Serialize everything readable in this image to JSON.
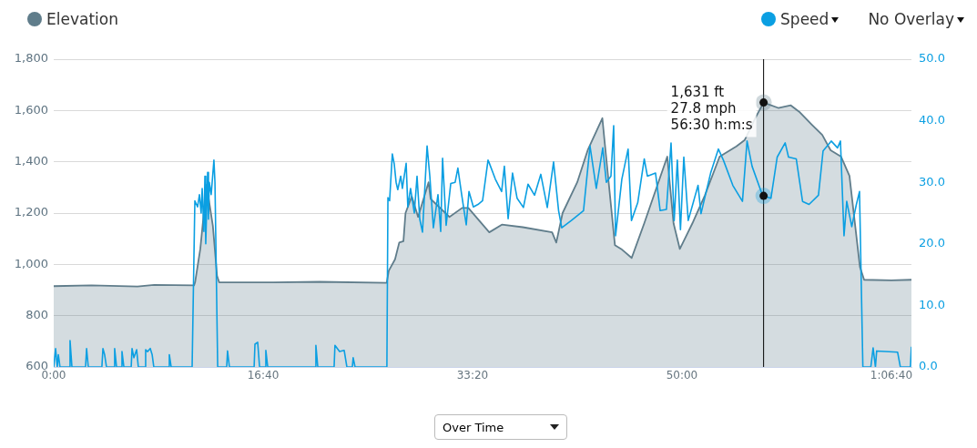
{
  "chart_data": {
    "type": "line",
    "xlim": [
      0,
      4096
    ],
    "xticks": [
      {
        "value": 0,
        "label": "0:00"
      },
      {
        "value": 1000,
        "label": "16:40"
      },
      {
        "value": 2000,
        "label": "33:20"
      },
      {
        "value": 3000,
        "label": "50:00"
      },
      {
        "value": 4000,
        "label": "1:06:40"
      }
    ],
    "ylim": [
      600,
      1800
    ],
    "yticks": [
      {
        "value": 600,
        "label": "600"
      },
      {
        "value": 800,
        "label": "800"
      },
      {
        "value": 1000,
        "label": "1,000"
      },
      {
        "value": 1200,
        "label": "1,200"
      },
      {
        "value": 1400,
        "label": "1,400"
      },
      {
        "value": 1600,
        "label": "1,600"
      },
      {
        "value": 1800,
        "label": "1,800"
      }
    ],
    "y2lim": [
      0,
      50
    ],
    "y2ticks": [
      {
        "value": 0,
        "label": "0.0"
      },
      {
        "value": 10,
        "label": "10.0"
      },
      {
        "value": 20,
        "label": "20.0"
      },
      {
        "value": 30,
        "label": "30.0"
      },
      {
        "value": 40,
        "label": "40.0"
      },
      {
        "value": 50,
        "label": "50.0"
      }
    ],
    "grid": "y",
    "legend": "top",
    "marker": "none",
    "line_style": "solid",
    "series": [
      {
        "name": "Elevation",
        "type": "area",
        "color": "#607d8b",
        "x": [
          0,
          180,
          400,
          480,
          670,
          675,
          700,
          730,
          760,
          780,
          790,
          1050,
          1270,
          1590,
          1600,
          1630,
          1650,
          1670,
          1680,
          1710,
          1740,
          1790,
          1800,
          1890,
          1950,
          1980,
          2080,
          2140,
          2240,
          2380,
          2400,
          2430,
          2500,
          2550,
          2620,
          2630,
          2680,
          2710,
          2760,
          2820,
          2930,
          2960,
          2990,
          3050,
          3110,
          3180,
          3260,
          3300,
          3350,
          3390,
          3460,
          3520,
          3560,
          3620,
          3670,
          3710,
          3760,
          3800,
          3850,
          3870,
          4000,
          4096
        ],
        "values": [
          915,
          918,
          914,
          920,
          918,
          930,
          1060,
          1310,
          1150,
          955,
          930,
          930,
          932,
          928,
          975,
          1020,
          1085,
          1090,
          1200,
          1265,
          1185,
          1320,
          1255,
          1185,
          1220,
          1220,
          1125,
          1155,
          1145,
          1125,
          1085,
          1200,
          1320,
          1445,
          1570,
          1485,
          1075,
          1060,
          1025,
          1160,
          1420,
          1160,
          1060,
          1160,
          1270,
          1420,
          1460,
          1485,
          1570,
          1631,
          1610,
          1620,
          1595,
          1545,
          1505,
          1445,
          1420,
          1345,
          990,
          940,
          938,
          940
        ]
      },
      {
        "name": "Speed",
        "type": "line",
        "axis": "y2",
        "color": "#0b9fe2",
        "x": [
          0,
          9,
          17,
          22,
          30,
          74,
          78,
          87,
          152,
          157,
          165,
          230,
          235,
          243,
          252,
          287,
          291,
          300,
          322,
          326,
          335,
          370,
          374,
          383,
          396,
          404,
          435,
          439,
          448,
          461,
          470,
          478,
          548,
          552,
          561,
          661,
          674,
          687,
          696,
          704,
          709,
          717,
          722,
          726,
          735,
          739,
          743,
          752,
          765,
          770,
          783,
          826,
          830,
          839,
          957,
          961,
          974,
          983,
          1009,
          1013,
          1022,
          1248,
          1252,
          1261,
          1339,
          1343,
          1365,
          1387,
          1400,
          1426,
          1430,
          1439,
          1591,
          1596,
          1604,
          1617,
          1626,
          1635,
          1643,
          1657,
          1665,
          1683,
          1691,
          1704,
          1722,
          1735,
          1748,
          1761,
          1783,
          1796,
          1813,
          1835,
          1848,
          1857,
          1874,
          1896,
          1917,
          1930,
          1948,
          1970,
          1983,
          2004,
          2026,
          2048,
          2074,
          2078,
          2109,
          2139,
          2152,
          2170,
          2191,
          2213,
          2243,
          2265,
          2296,
          2326,
          2357,
          2387,
          2411,
          2426,
          2472,
          2530,
          2561,
          2591,
          2622,
          2639,
          2661,
          2674,
          2683,
          2713,
          2743,
          2759,
          2789,
          2820,
          2835,
          2874,
          2896,
          2926,
          2948,
          2963,
          2978,
          2993,
          3009,
          3030,
          3077,
          3091,
          3137,
          3174,
          3198,
          3243,
          3289,
          3311,
          3335,
          3378,
          3390,
          3425,
          3455,
          3493,
          3509,
          3546,
          3576,
          3607,
          3652,
          3674,
          3713,
          3743,
          3757,
          3774,
          3787,
          3811,
          3833,
          3848,
          3864,
          3902,
          3913,
          3924,
          3930,
          4030,
          4043,
          4091,
          4096
        ],
        "values": [
          0,
          3,
          0,
          2,
          0,
          0,
          4.3,
          0,
          0,
          3,
          0,
          0,
          3,
          2,
          0,
          0,
          3,
          0,
          0,
          2.5,
          0,
          0,
          3,
          1.5,
          2.8,
          0,
          0,
          2.8,
          2.5,
          3,
          2,
          0,
          0,
          2,
          0,
          0,
          27,
          26,
          28,
          25,
          29,
          22,
          31,
          20,
          31.6,
          24,
          30,
          28,
          33.6,
          30,
          0,
          0,
          2.6,
          0,
          0,
          3.7,
          4,
          0,
          0,
          2.7,
          0,
          0,
          3.5,
          0,
          0,
          3.5,
          2.5,
          2.7,
          0,
          0,
          1.5,
          0,
          0,
          27.5,
          27,
          34.6,
          33,
          30,
          28.8,
          31,
          29,
          33.1,
          26,
          29,
          25,
          31,
          24,
          21.9,
          35.9,
          31,
          22.6,
          28,
          22,
          33.9,
          23,
          29.8,
          30,
          32.3,
          28,
          23.1,
          28.5,
          26,
          26.4,
          27,
          33.6,
          33.3,
          30.5,
          28.5,
          32.6,
          24.1,
          31.5,
          27.4,
          25.9,
          29.7,
          27.9,
          31.3,
          25.9,
          33.3,
          25.4,
          22.6,
          23.8,
          25.4,
          35.9,
          29,
          35.6,
          30,
          31,
          39.2,
          21.3,
          30.5,
          35.4,
          23.8,
          26.7,
          33.8,
          31,
          31.5,
          25.4,
          25.6,
          36.4,
          23.8,
          33.6,
          22.3,
          34.1,
          23.8,
          29.5,
          24.9,
          31.5,
          35.4,
          33.6,
          29.5,
          26.9,
          36.7,
          32.6,
          28.5,
          27.8,
          27.4,
          34.1,
          36.4,
          34.1,
          33.8,
          26.9,
          26.4,
          27.9,
          35.1,
          36.7,
          35.6,
          36.7,
          21.3,
          26.9,
          22.8,
          26.4,
          28.5,
          0,
          0,
          3.1,
          0,
          2.6,
          2.4,
          0,
          0,
          3.3
        ]
      }
    ],
    "ref_lines": [
      {
        "axis": "x",
        "value": 3390,
        "color": "#000000"
      }
    ],
    "annotations": [
      "No Overlay",
      "Over Time",
      {
        "text": "1,631 ft\n27.8 mph\n56:30 h:m:s",
        "x": 3390,
        "y": 1631
      }
    ]
  }
}
